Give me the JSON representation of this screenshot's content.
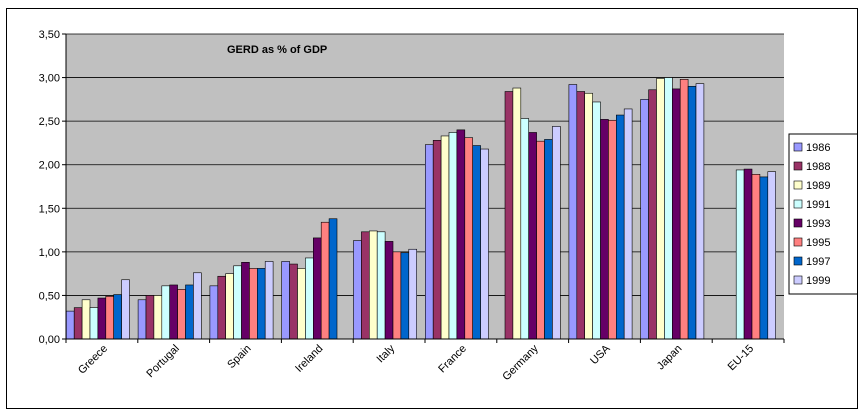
{
  "chart_data": {
    "type": "bar",
    "title": "GERD as % of GDP",
    "xlabel": "",
    "ylabel": "",
    "ylim": [
      0,
      3.5
    ],
    "yticks": [
      "0,00",
      "0,50",
      "1,00",
      "1,50",
      "2,00",
      "2,50",
      "3,00",
      "3,50"
    ],
    "ytick_values": [
      0,
      0.5,
      1.0,
      1.5,
      2.0,
      2.5,
      3.0,
      3.5
    ],
    "grid": true,
    "legend_position": "right",
    "categories": [
      "Greece",
      "Portugal",
      "Spain",
      "Ireland",
      "Italy",
      "France",
      "Germany",
      "USA",
      "Japan",
      "EU-15"
    ],
    "series": [
      {
        "name": "1986",
        "color": "#9999ff",
        "values": [
          0.32,
          0.45,
          0.61,
          0.89,
          1.13,
          2.23,
          null,
          2.92,
          2.75,
          null
        ]
      },
      {
        "name": "1988",
        "color": "#993366",
        "values": [
          0.36,
          0.5,
          0.72,
          0.86,
          1.23,
          2.28,
          2.84,
          2.84,
          2.86,
          null
        ]
      },
      {
        "name": "1989",
        "color": "#ffffcc",
        "values": [
          0.45,
          0.5,
          0.75,
          0.81,
          1.24,
          2.33,
          2.88,
          2.82,
          2.99,
          null
        ]
      },
      {
        "name": "1991",
        "color": "#ccffff",
        "values": [
          0.36,
          0.61,
          0.84,
          0.93,
          1.23,
          2.37,
          2.53,
          2.72,
          3.0,
          1.94
        ]
      },
      {
        "name": "1993",
        "color": "#660066",
        "values": [
          0.47,
          0.62,
          0.88,
          1.16,
          1.12,
          2.4,
          2.37,
          2.52,
          2.87,
          1.95
        ]
      },
      {
        "name": "1995",
        "color": "#ff8080",
        "values": [
          0.49,
          0.57,
          0.81,
          1.34,
          1.0,
          2.31,
          2.27,
          2.51,
          2.98,
          1.89
        ]
      },
      {
        "name": "1997",
        "color": "#0066cc",
        "values": [
          0.51,
          0.62,
          0.81,
          1.38,
          0.99,
          2.22,
          2.29,
          2.57,
          2.9,
          1.86
        ]
      },
      {
        "name": "1999",
        "color": "#ccccff",
        "values": [
          0.68,
          0.76,
          0.89,
          null,
          1.03,
          2.18,
          2.44,
          2.64,
          2.93,
          1.92
        ]
      }
    ]
  }
}
